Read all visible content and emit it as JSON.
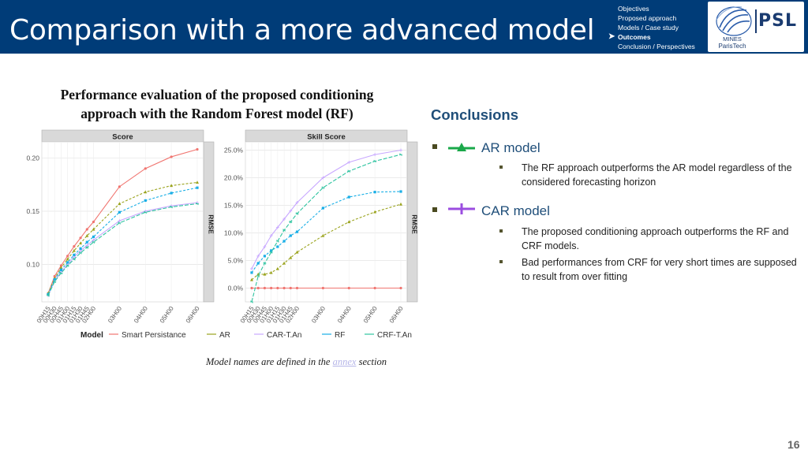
{
  "header": {
    "title": "Comparison with a more advanced model",
    "nav": [
      "Objectives",
      "Proposed approach",
      "Models / Case study",
      "Outcomes",
      "Conclusion / Perspectives"
    ],
    "active_index": 3,
    "logo_text": "PSL",
    "logo_mines_line1": "MINES",
    "logo_mines_line2": "ParisTech"
  },
  "figure": {
    "caption_line1": "Performance evaluation of the proposed conditioning",
    "caption_line2": "approach with the Random Forest model (RF)",
    "note_before": "Model names are defined in the ",
    "note_link": "annex",
    "note_after": " section"
  },
  "chart_data": [
    {
      "type": "line",
      "title": "Score",
      "strip_label": "RMSE",
      "x": [
        "00H15",
        "00H30",
        "00H45",
        "01H00",
        "01H15",
        "01H30",
        "01H45",
        "02H00",
        "03H00",
        "04H00",
        "05H00",
        "06H00"
      ],
      "ylim": [
        0.065,
        0.215
      ],
      "yticks": [
        0.1,
        0.15,
        0.2
      ],
      "ytick_labels": [
        "0.10",
        "0.15",
        "0.20"
      ],
      "series": [
        {
          "name": "Smart Persistance",
          "color": "#f07570",
          "values": [
            0.073,
            0.089,
            0.099,
            0.108,
            0.117,
            0.125,
            0.133,
            0.14,
            0.173,
            0.19,
            0.201,
            0.208
          ]
        },
        {
          "name": "AR",
          "color": "#9aa31d",
          "values": [
            0.073,
            0.087,
            0.097,
            0.105,
            0.113,
            0.12,
            0.127,
            0.133,
            0.157,
            0.168,
            0.174,
            0.177
          ]
        },
        {
          "name": "CAR-T.An",
          "color": "#c8a8ff",
          "values": [
            0.071,
            0.085,
            0.093,
            0.1,
            0.107,
            0.113,
            0.118,
            0.123,
            0.141,
            0.15,
            0.155,
            0.158
          ]
        },
        {
          "name": "RF",
          "color": "#18aee6",
          "values": [
            0.072,
            0.086,
            0.095,
            0.102,
            0.109,
            0.115,
            0.121,
            0.126,
            0.149,
            0.16,
            0.167,
            0.172
          ]
        },
        {
          "name": "CRF-T.An",
          "color": "#2ec4a0",
          "values": [
            0.071,
            0.084,
            0.092,
            0.099,
            0.105,
            0.111,
            0.116,
            0.121,
            0.139,
            0.149,
            0.154,
            0.157
          ]
        }
      ]
    },
    {
      "type": "line",
      "title": "Skill Score",
      "strip_label": "RMSE",
      "x": [
        "00H15",
        "00H30",
        "00H45",
        "01H00",
        "01H15",
        "01H30",
        "01H45",
        "02H00",
        "03H00",
        "04H00",
        "05H00",
        "06H00"
      ],
      "ylim": [
        -2.5,
        26.5
      ],
      "yticks": [
        0,
        5,
        10,
        15,
        20,
        25
      ],
      "ytick_labels": [
        "0.0%",
        "5.0%",
        "10.0%",
        "15.0%",
        "20.0%",
        "25.0%"
      ],
      "series": [
        {
          "name": "Smart Persistance",
          "color": "#f07570",
          "values": [
            0,
            0,
            0,
            0,
            0,
            0,
            0,
            0,
            0,
            0,
            0,
            0
          ]
        },
        {
          "name": "AR",
          "color": "#9aa31d",
          "values": [
            1.5,
            2.5,
            2.5,
            2.8,
            3.5,
            4.5,
            5.5,
            6.5,
            9.5,
            12,
            13.8,
            15.2
          ]
        },
        {
          "name": "CAR-T.An",
          "color": "#c8a8ff",
          "values": [
            3.5,
            5.8,
            7.5,
            9.5,
            11,
            12.5,
            14,
            15.5,
            20,
            22.8,
            24.2,
            25
          ]
        },
        {
          "name": "RF",
          "color": "#18aee6",
          "values": [
            2.8,
            4.5,
            5.8,
            6.8,
            7.5,
            8.5,
            9.5,
            10.2,
            14.5,
            16.5,
            17.4,
            17.5
          ]
        },
        {
          "name": "CRF-T.An",
          "color": "#2ec4a0",
          "values": [
            -2.5,
            2.2,
            4.5,
            6.5,
            8.5,
            10.5,
            12,
            13.5,
            18.2,
            21.2,
            23,
            24.2
          ]
        }
      ]
    }
  ],
  "legend": {
    "title": "Model"
  },
  "conclusions": {
    "title": "Conclusions",
    "groups": [
      {
        "model": "AR model",
        "icon_color": "#1aa84a",
        "points": [
          "The RF approach outperforms the AR model regardless of the considered forecasting horizon"
        ]
      },
      {
        "model": "CAR model",
        "icon_color": "#9b4de0",
        "points": [
          "The proposed conditioning approach outperforms the RF and CRF models.",
          "Bad performances from CRF for very short times are supposed to result from over fitting"
        ]
      }
    ]
  },
  "page_number": "16"
}
